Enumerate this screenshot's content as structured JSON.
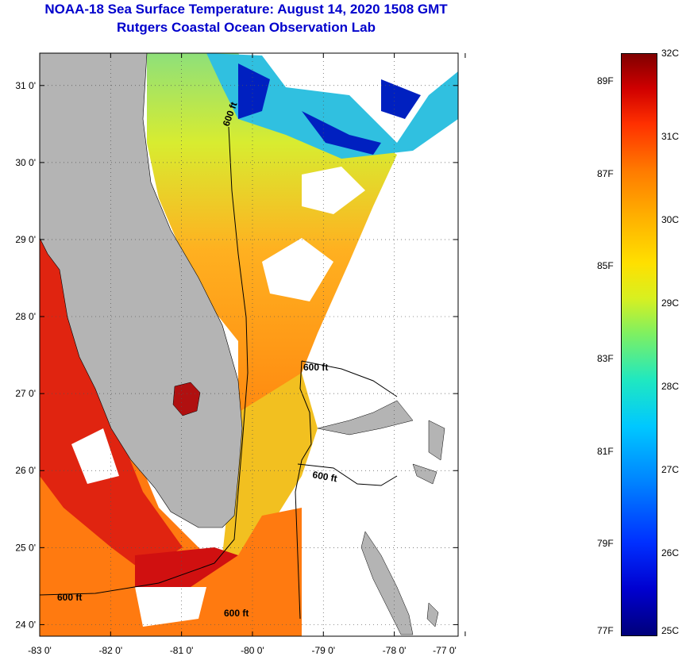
{
  "title": "NOAA-18 Sea Surface Temperature:  August 14, 2020 1508 GMT",
  "subtitle": "Rutgers Coastal Ocean Observation Lab",
  "lat_ticks": [
    "31 0'",
    "30 0'",
    "29 0'",
    "28 0'",
    "27 0'",
    "26 0'",
    "25 0'",
    "24 0'"
  ],
  "lon_ticks": [
    "-83 0'",
    "-82 0'",
    "-81 0'",
    "-80 0'",
    "-79 0'",
    "-78 0'",
    "-77 0'"
  ],
  "contour_labels": [
    "600 ft",
    "600 ft",
    "600 ft",
    "600 ft",
    "600 ft"
  ],
  "colorbar": {
    "celsius": [
      "32C",
      "31C",
      "30C",
      "29C",
      "28C",
      "27C",
      "26C",
      "25C"
    ],
    "fahrenheit": [
      "89F",
      "87F",
      "85F",
      "83F",
      "81F",
      "79F",
      "77F"
    ],
    "min_c": 25,
    "max_c": 32
  },
  "colors": {
    "title": "#0000cc",
    "land": "#b4b4b4",
    "cloud": "#ffffff",
    "warm": "#e02000",
    "orange": "#ff9000",
    "yellow": "#e8e010",
    "cool": "#30c0e0",
    "cold": "#0020c0"
  }
}
